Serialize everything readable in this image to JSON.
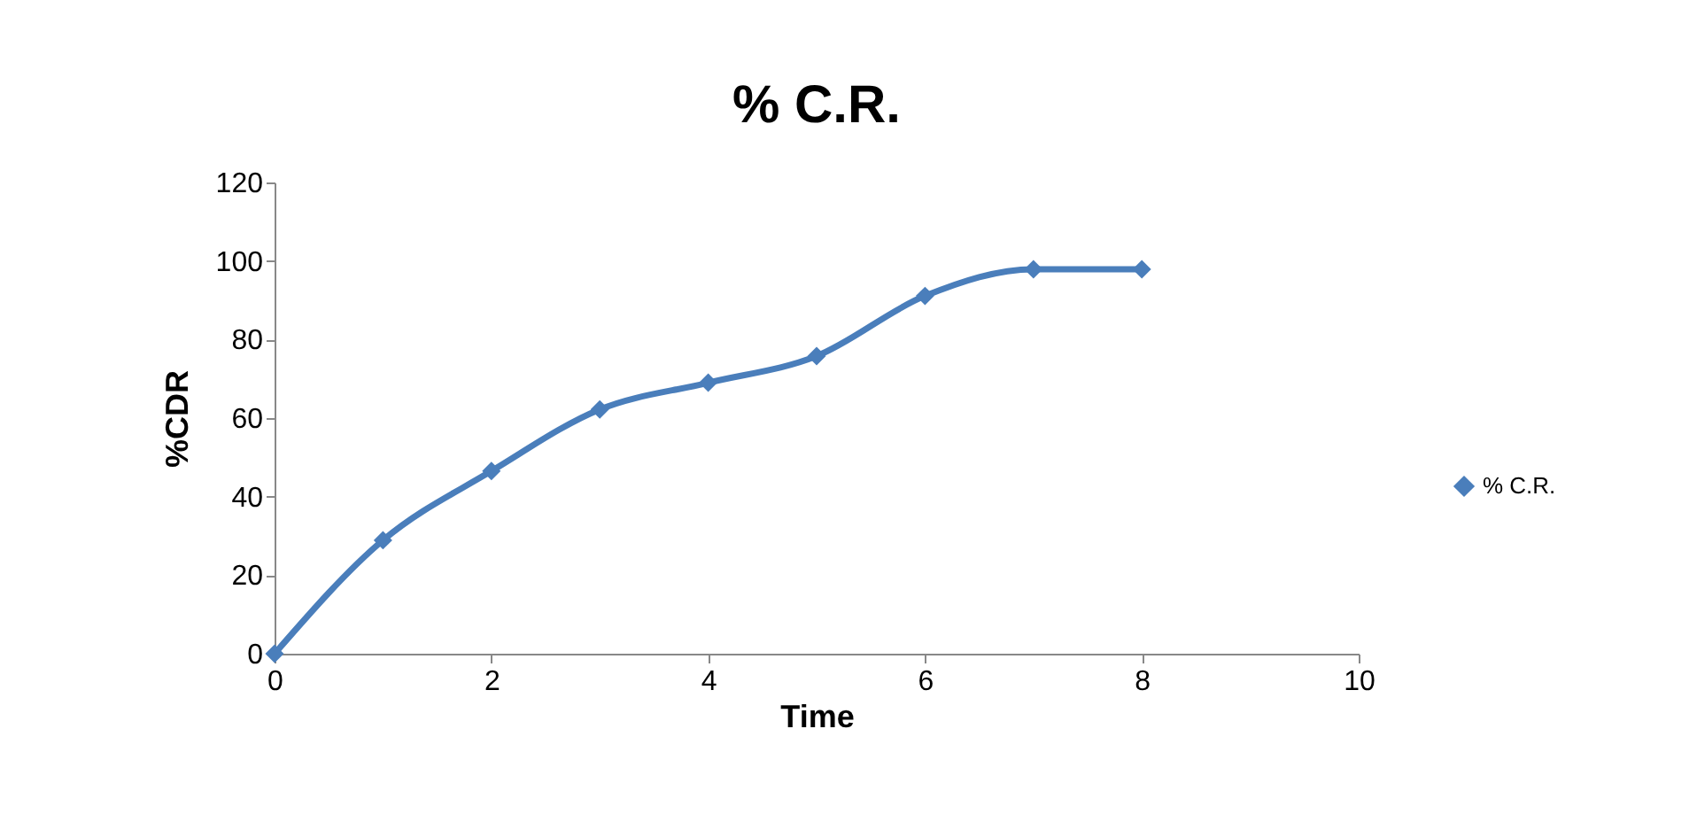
{
  "chart_data": {
    "type": "line",
    "title": "% C.R.",
    "xlabel": "Time",
    "ylabel": "%CDR",
    "x": [
      0,
      1,
      2,
      3,
      4,
      5,
      6,
      7,
      8
    ],
    "series": [
      {
        "name": "% C.R.",
        "color": "#4a7ebb",
        "values": [
          0,
          28.9,
          46.5,
          62.2,
          69,
          75.8,
          91.1,
          97.9,
          97.9
        ]
      }
    ],
    "xlim": [
      0,
      10
    ],
    "xticks": [
      0,
      2,
      4,
      6,
      8,
      10
    ],
    "ylim": [
      0,
      120
    ],
    "yticks": [
      0,
      20,
      40,
      60,
      80,
      100,
      120
    ],
    "grid": false,
    "legend": "right",
    "marker": "diamond",
    "line_style": "solid"
  }
}
